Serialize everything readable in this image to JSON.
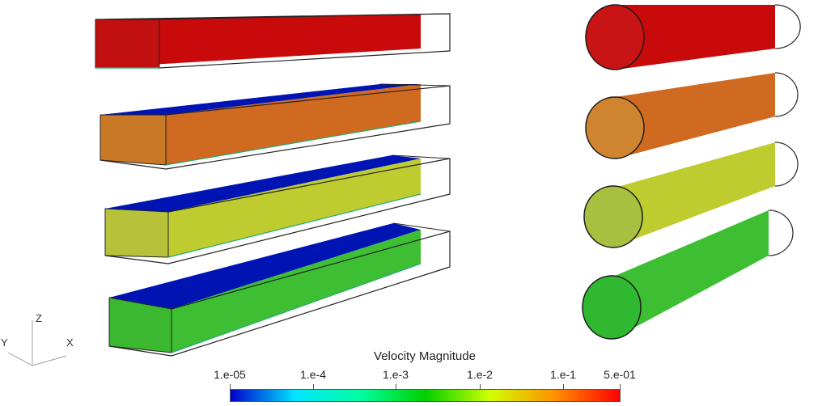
{
  "colorbar": {
    "title": "Velocity Magnitude",
    "tick_labels": [
      "1.e-05",
      "1.e-4",
      "1.e-3",
      "1.e-2",
      "1.e-1",
      "5.e-01"
    ],
    "colors": [
      "#0000c8",
      "#00e6ff",
      "#00ffa0",
      "#00d000",
      "#d0ff00",
      "#ff9000",
      "#ff0000"
    ]
  },
  "orientation_axes": {
    "z": "Z",
    "y": "Y",
    "x": "X"
  },
  "rectangular_ducts": [
    {
      "fill": "#c80a0a",
      "top": "#c80a0a",
      "level": 1.0
    },
    {
      "fill": "#cf6a20",
      "top": "#0014b4",
      "level": 0.8
    },
    {
      "fill": "#bfcc30",
      "top": "#0014b4",
      "level": 0.6
    },
    {
      "fill": "#3ebe32",
      "top": "#0014b4",
      "level": 0.4
    }
  ],
  "circular_ducts": [
    {
      "fill": "#c80a0a",
      "cap": "#c81414",
      "level": 1.0
    },
    {
      "fill": "#cf6a20",
      "cap": "#cf8530",
      "level": 0.8
    },
    {
      "fill": "#bfcc30",
      "cap": "#a8c040",
      "level": 0.6
    },
    {
      "fill": "#3ebe32",
      "cap": "#30b830",
      "level": 0.4
    }
  ]
}
